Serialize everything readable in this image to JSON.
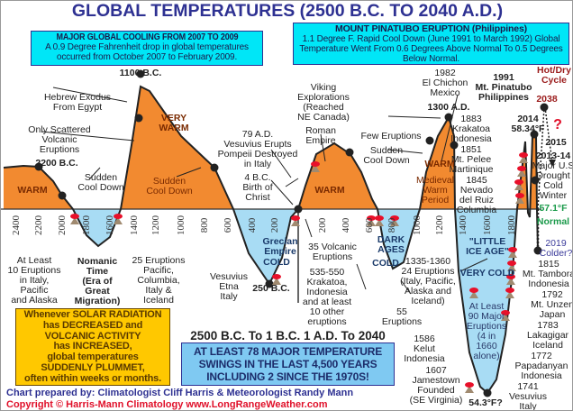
{
  "title": "GLOBAL TEMPERATURES (2500 B.C. TO 2040 A.D.)",
  "box_cooling": {
    "heading": "MAJOR GLOBAL COOLING FROM 2007 TO 2009",
    "text": "A 0.9 Degree Fahrenheit drop in global temperatures occurred from October 2007 to February 2009."
  },
  "box_pinatubo": {
    "heading": "MOUNT PINATUBO ERUPTION (Philippines)",
    "text": "1.1 Degree F. Rapid Cool Down (June 1991 to March 1992) Global Temperature Went From 0.6 Degrees Above Normal To 0.5 Degrees Below Normal."
  },
  "solar_box": "Whenever SOLAR RADIATION\nhas DECREASED and\nVOLCANIC ACTIVITY\nhas INCREASED,\nglobal temperatures\nSUDDENLY PLUMMET,\noften within weeks or months.",
  "span_label": "2500 B.C. To 1 B.C.  1 A.D. To 2040",
  "swings_box": "AT LEAST 78 MAJOR TEMPERATURE\nSWINGS IN THE LAST 4,500 YEARS\nINCLUDING 2 SINCE THE 1970S!",
  "footer": {
    "credit": "Chart prepared by: Climatologist Cliff Harris & Meteorologist Randy Mann",
    "copyright": "Copyright © Harris-Mann Climatology   www.LongRangeWeather.com"
  },
  "colors": {
    "warm": "#f28a30",
    "cold": "#a8dcf4",
    "title": "#2e3192",
    "cyan_box": "#00e6f7",
    "solar_box": "#ffc800",
    "red": "#e0102a",
    "normal_green": "#1a9a4a"
  },
  "chart_data": {
    "type": "area",
    "baseline": "Normal (57.1°F)",
    "x_ticks_bc": [
      "2400",
      "2200",
      "2000",
      "1800",
      "1600",
      "1400",
      "1200",
      "1000",
      "800",
      "600",
      "400",
      "200"
    ],
    "x_ticks_ad": [
      "200",
      "400",
      "600",
      "800",
      "1000",
      "1200",
      "1400",
      "1600",
      "1800"
    ],
    "annotations": [
      {
        "text": "1100 B.C.",
        "bold": true
      },
      {
        "text": "Hebrew Exodus\nFrom Egypt"
      },
      {
        "text": "Only Scattered\nVolcanic\nEruptions"
      },
      {
        "text": "VERY\nWARM",
        "bold": true,
        "color": "#7a2a00"
      },
      {
        "text": "2200 B.C.",
        "bold": true
      },
      {
        "text": "Sudden\nCool Down"
      },
      {
        "text": "WARM",
        "bold": true,
        "color": "#7a2a00"
      },
      {
        "text": "Sudden\nCool Down",
        "color": "#7a2a00"
      },
      {
        "text": "79 A.D.\nVesuvius Erupts\nPompeii Destroyed\nin Italy"
      },
      {
        "text": "4 B.C.\nBirth of\nChrist"
      },
      {
        "text": "Roman\nEmpire"
      },
      {
        "text": "WARM",
        "bold": true,
        "color": "#7a2a00"
      },
      {
        "text": "Viking\nExplorations\n(Reached\nNE Canada)"
      },
      {
        "text": "1300 A.D.",
        "bold": true
      },
      {
        "text": "Few Eruptions"
      },
      {
        "text": "Sudden\nCool Down"
      },
      {
        "text": "WARM",
        "bold": true,
        "color": "#7a2a00"
      },
      {
        "text": "Medieval\nWarm\nPeriod",
        "color": "#7a2a00"
      },
      {
        "text": "1982\nEl Chichon\nMexico"
      },
      {
        "text": "1991\nMt. Pinatubo\nPhilippines",
        "bold": true
      },
      {
        "text": "Hot/Dry\nCycle",
        "bold": true,
        "color": "#9b1b1b"
      },
      {
        "text": "2038",
        "bold": true,
        "color": "#9b1b1b"
      },
      {
        "text": "?",
        "bold": true,
        "color": "#e0102a"
      },
      {
        "text": "2014\n58.34°F",
        "bold": true
      },
      {
        "text": "2015",
        "bold": true
      },
      {
        "text": "2013-14",
        "bold": true
      },
      {
        "text": "Major U.S\nDrought\nCold\nWinter"
      },
      {
        "text": "57.1°F",
        "bold": true,
        "color": "#1a9a4a"
      },
      {
        "text": "Normal",
        "bold": true,
        "color": "#1a9a4a"
      },
      {
        "text": "1883\nKrakatoa\nIndonesia"
      },
      {
        "text": "1851\nMt. Pelee\nMartinique"
      },
      {
        "text": "1845\nNevado\ndel Ruiz\nColumbia"
      },
      {
        "text": "2019\nColder?",
        "color": "#3a3a9a"
      },
      {
        "text": "Grecian\nEmpire",
        "bold": true,
        "color": "#1a3a6a"
      },
      {
        "text": "COLD",
        "bold": true,
        "color": "#1a3a6a"
      },
      {
        "text": "Vesuvius\nEtna\nItaly"
      },
      {
        "text": "250 B.C.",
        "bold": true
      },
      {
        "text": "35 Volcanic\nEruptions"
      },
      {
        "text": "535-550\nKrakatoa,\nIndonesia\nand at least\n10 other\neruptions"
      },
      {
        "text": "DARK\nAGES",
        "bold": true,
        "color": "#1a3a6a"
      },
      {
        "text": "COLD",
        "bold": true,
        "color": "#1a3a6a"
      },
      {
        "text": "55\nEruptions"
      },
      {
        "text": "1335-1360\n24 Eruptions\n(Italy, Pacific,\nAlaska and\nIceland)"
      },
      {
        "text": "\"LITTLE\nICE AGE\"",
        "bold": true,
        "color": "#1a3a6a"
      },
      {
        "text": "VERY COLD",
        "bold": true,
        "color": "#1a3a6a"
      },
      {
        "text": "At Least\n90 Major\nEruptions\n(4 in\n1660\nalone)",
        "color": "#2a3a6a"
      },
      {
        "text": "1815\nMt. Tambora\nIndonesia"
      },
      {
        "text": "1792\nMt. Unzen\nJapan"
      },
      {
        "text": "1783\nLakagigar\nIceland"
      },
      {
        "text": "1772\nPapadanyan\nIndonesia"
      },
      {
        "text": "1741\nVesuvius\nItaly"
      },
      {
        "text": "1586\nKelut\nIndonesia"
      },
      {
        "text": "1607\nJamestown\nFounded\n(SE Virginia)"
      },
      {
        "text": "54.3°F?",
        "bold": true
      },
      {
        "text": "At Least\n10 Eruptions\nin Italy,\nPacific\nand Alaska"
      },
      {
        "text": "Nomanic\nTime\n(Era of\nGreat\nMigration)",
        "bold": true
      },
      {
        "text": "25 Eruptions\nPacific,\nColumbia,\nItaly &\nIceland"
      }
    ]
  }
}
